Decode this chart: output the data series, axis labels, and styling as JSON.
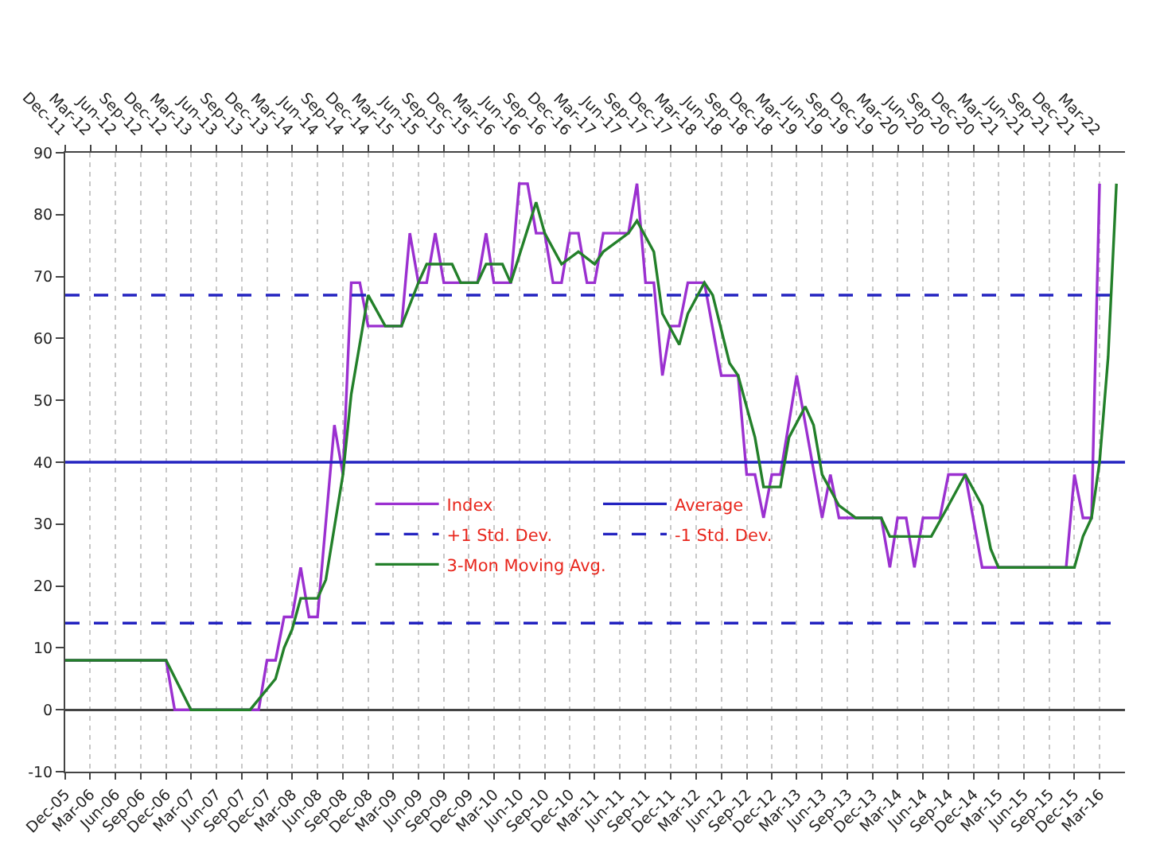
{
  "chart_data": {
    "type": "line",
    "series": [
      {
        "name": "Index",
        "color": "#9b30d0",
        "x": [
          "2005-12",
          "2006-12",
          "2007-01",
          "2007-11",
          "2007-12",
          "2008-01",
          "2008-02",
          "2008-03",
          "2008-04",
          "2008-05",
          "2008-06",
          "2008-08",
          "2008-09",
          "2008-10",
          "2008-11",
          "2008-12",
          "2009-04",
          "2009-05",
          "2009-06",
          "2009-07",
          "2009-08",
          "2009-09",
          "2010-01",
          "2010-02",
          "2010-03",
          "2010-05",
          "2010-06",
          "2010-07",
          "2010-08",
          "2010-09",
          "2010-10",
          "2010-11",
          "2010-12",
          "2011-01",
          "2011-02",
          "2011-03",
          "2011-04",
          "2011-07",
          "2011-08",
          "2011-09",
          "2011-10",
          "2011-11",
          "2011-12",
          "2012-01",
          "2012-02",
          "2012-04",
          "2012-06",
          "2012-08",
          "2012-09",
          "2012-10",
          "2012-11",
          "2012-12",
          "2013-01",
          "2013-03",
          "2013-06",
          "2013-07",
          "2013-08",
          "2014-01",
          "2014-02",
          "2014-03",
          "2014-04",
          "2014-05",
          "2014-06",
          "2014-08",
          "2014-09",
          "2014-11",
          "2015-01",
          "2015-11",
          "2015-12",
          "2016-01",
          "2016-02",
          "2016-03"
        ],
        "values": [
          8,
          8,
          0,
          0,
          8,
          8,
          15,
          15,
          23,
          15,
          15,
          46,
          38,
          69,
          69,
          62,
          62,
          77,
          69,
          69,
          77,
          69,
          69,
          77,
          69,
          69,
          85,
          85,
          77,
          77,
          69,
          69,
          77,
          77,
          69,
          69,
          77,
          77,
          85,
          69,
          69,
          54,
          62,
          62,
          69,
          69,
          54,
          54,
          38,
          38,
          31,
          38,
          38,
          54,
          31,
          38,
          31,
          31,
          23,
          31,
          31,
          23,
          31,
          31,
          38,
          38,
          23,
          23,
          38,
          31,
          31,
          85
        ]
      },
      {
        "name": "3-Mon Moving Avg.",
        "color": "#23802a",
        "x": [
          "2005-12",
          "2006-12",
          "2007-03",
          "2007-10",
          "2008-01",
          "2008-02",
          "2008-03",
          "2008-04",
          "2008-06",
          "2008-07",
          "2008-09",
          "2008-10",
          "2008-12",
          "2009-02",
          "2009-04",
          "2009-06",
          "2009-07",
          "2009-10",
          "2009-11",
          "2010-01",
          "2010-02",
          "2010-04",
          "2010-05",
          "2010-08",
          "2010-09",
          "2010-11",
          "2011-01",
          "2011-03",
          "2011-04",
          "2011-07",
          "2011-08",
          "2011-10",
          "2011-11",
          "2012-01",
          "2012-02",
          "2012-04",
          "2012-05",
          "2012-07",
          "2012-08",
          "2012-10",
          "2012-11",
          "2013-01",
          "2013-02",
          "2013-04",
          "2013-05",
          "2013-06",
          "2013-08",
          "2013-10",
          "2014-01",
          "2014-02",
          "2014-07",
          "2014-09",
          "2014-11",
          "2015-01",
          "2015-02",
          "2015-03",
          "2015-12",
          "2016-01",
          "2016-02",
          "2016-03",
          "2016-04",
          "2016-05"
        ],
        "values": [
          8,
          8,
          0,
          0,
          5,
          10,
          13,
          18,
          18,
          21,
          38,
          51,
          67,
          62,
          62,
          69,
          72,
          72,
          69,
          69,
          72,
          72,
          69,
          82,
          77,
          72,
          74,
          72,
          74,
          77,
          79,
          74,
          64,
          59,
          64,
          69,
          67,
          56,
          54,
          44,
          36,
          36,
          44,
          49,
          46,
          38,
          33,
          31,
          31,
          28,
          28,
          33,
          38,
          33,
          26,
          23,
          23,
          28,
          31,
          40,
          57,
          85
        ]
      }
    ],
    "ref_lines": [
      {
        "axis": "y",
        "value": 40,
        "label": "Average",
        "color": "#2323c0",
        "line_style": "solid"
      },
      {
        "axis": "y",
        "value": 67,
        "label": "+1 Std. Dev.",
        "color": "#2323c0",
        "line_style": "dashed"
      },
      {
        "axis": "y",
        "value": 14,
        "label": "-1 Std. Dev.",
        "color": "#2323c0",
        "line_style": "dashed"
      }
    ],
    "xlim": [
      "2005-12",
      "2016-06"
    ],
    "xticks": [
      {
        "value": "2005-12",
        "label": "Dec-05"
      },
      {
        "value": "2006-03",
        "label": "Mar-06"
      },
      {
        "value": "2006-06",
        "label": "Jun-06"
      },
      {
        "value": "2006-09",
        "label": "Sep-06"
      },
      {
        "value": "2006-12",
        "label": "Dec-06"
      },
      {
        "value": "2007-03",
        "label": "Mar-07"
      },
      {
        "value": "2007-06",
        "label": "Jun-07"
      },
      {
        "value": "2007-09",
        "label": "Sep-07"
      },
      {
        "value": "2007-12",
        "label": "Dec-07"
      },
      {
        "value": "2008-03",
        "label": "Mar-08"
      },
      {
        "value": "2008-06",
        "label": "Jun-08"
      },
      {
        "value": "2008-09",
        "label": "Sep-08"
      },
      {
        "value": "2008-12",
        "label": "Dec-08"
      },
      {
        "value": "2009-03",
        "label": "Mar-09"
      },
      {
        "value": "2009-06",
        "label": "Jun-09"
      },
      {
        "value": "2009-09",
        "label": "Sep-09"
      },
      {
        "value": "2009-12",
        "label": "Dec-09"
      },
      {
        "value": "2010-03",
        "label": "Mar-10"
      },
      {
        "value": "2010-06",
        "label": "Jun-10"
      },
      {
        "value": "2010-09",
        "label": "Sep-10"
      },
      {
        "value": "2010-12",
        "label": "Dec-10"
      },
      {
        "value": "2011-03",
        "label": "Mar-11"
      },
      {
        "value": "2011-06",
        "label": "Jun-11"
      },
      {
        "value": "2011-09",
        "label": "Sep-11"
      },
      {
        "value": "2011-12",
        "label": "Dec-11"
      },
      {
        "value": "2012-03",
        "label": "Mar-12"
      },
      {
        "value": "2012-06",
        "label": "Jun-12"
      },
      {
        "value": "2012-09",
        "label": "Sep-12"
      },
      {
        "value": "2012-12",
        "label": "Dec-12"
      },
      {
        "value": "2013-03",
        "label": "Mar-13"
      },
      {
        "value": "2013-06",
        "label": "Jun-13"
      },
      {
        "value": "2013-09",
        "label": "Sep-13"
      },
      {
        "value": "2013-12",
        "label": "Dec-13"
      },
      {
        "value": "2014-03",
        "label": "Mar-14"
      },
      {
        "value": "2014-06",
        "label": "Jun-14"
      },
      {
        "value": "2014-09",
        "label": "Sep-14"
      },
      {
        "value": "2014-12",
        "label": "Dec-14"
      },
      {
        "value": "2015-03",
        "label": "Mar-15"
      },
      {
        "value": "2015-06",
        "label": "Jun-15"
      },
      {
        "value": "2015-09",
        "label": "Sep-15"
      },
      {
        "value": "2015-12",
        "label": "Dec-15"
      },
      {
        "value": "2016-03",
        "label": "Mar-16"
      }
    ],
    "x2lim": [
      "2011-12",
      "2022-06"
    ],
    "x2ticks": [
      {
        "value": "2011-12",
        "label": "Dec-11"
      },
      {
        "value": "2012-03",
        "label": "Mar-12"
      },
      {
        "value": "2012-06",
        "label": "Jun-12"
      },
      {
        "value": "2012-09",
        "label": "Sep-12"
      },
      {
        "value": "2012-12",
        "label": "Dec-12"
      },
      {
        "value": "2013-03",
        "label": "Mar-13"
      },
      {
        "value": "2013-06",
        "label": "Jun-13"
      },
      {
        "value": "2013-09",
        "label": "Sep-13"
      },
      {
        "value": "2013-12",
        "label": "Dec-13"
      },
      {
        "value": "2014-03",
        "label": "Mar-14"
      },
      {
        "value": "2014-06",
        "label": "Jun-14"
      },
      {
        "value": "2014-09",
        "label": "Sep-14"
      },
      {
        "value": "2014-12",
        "label": "Dec-14"
      },
      {
        "value": "2015-03",
        "label": "Mar-15"
      },
      {
        "value": "2015-06",
        "label": "Jun-15"
      },
      {
        "value": "2015-09",
        "label": "Sep-15"
      },
      {
        "value": "2015-12",
        "label": "Dec-15"
      },
      {
        "value": "2016-03",
        "label": "Mar-16"
      },
      {
        "value": "2016-06",
        "label": "Jun-16"
      },
      {
        "value": "2016-09",
        "label": "Sep-16"
      },
      {
        "value": "2016-12",
        "label": "Dec-16"
      },
      {
        "value": "2017-03",
        "label": "Mar-17"
      },
      {
        "value": "2017-06",
        "label": "Jun-17"
      },
      {
        "value": "2017-09",
        "label": "Sep-17"
      },
      {
        "value": "2017-12",
        "label": "Dec-17"
      },
      {
        "value": "2018-03",
        "label": "Mar-18"
      },
      {
        "value": "2018-06",
        "label": "Jun-18"
      },
      {
        "value": "2018-09",
        "label": "Sep-18"
      },
      {
        "value": "2018-12",
        "label": "Dec-18"
      },
      {
        "value": "2019-03",
        "label": "Mar-19"
      },
      {
        "value": "2019-06",
        "label": "Jun-19"
      },
      {
        "value": "2019-09",
        "label": "Sep-19"
      },
      {
        "value": "2019-12",
        "label": "Dec-19"
      },
      {
        "value": "2020-03",
        "label": "Mar-20"
      },
      {
        "value": "2020-06",
        "label": "Jun-20"
      },
      {
        "value": "2020-09",
        "label": "Sep-20"
      },
      {
        "value": "2020-12",
        "label": "Dec-20"
      },
      {
        "value": "2021-03",
        "label": "Mar-21"
      },
      {
        "value": "2021-06",
        "label": "Jun-21"
      },
      {
        "value": "2021-09",
        "label": "Sep-21"
      },
      {
        "value": "2021-12",
        "label": "Dec-21"
      },
      {
        "value": "2022-03",
        "label": "Mar-22"
      }
    ],
    "ylim": [
      -10,
      90
    ],
    "yticks": [
      -10,
      0,
      10,
      20,
      30,
      40,
      50,
      60,
      70,
      80,
      90
    ],
    "grid": "x",
    "legend": "center",
    "line_style": "solid"
  }
}
